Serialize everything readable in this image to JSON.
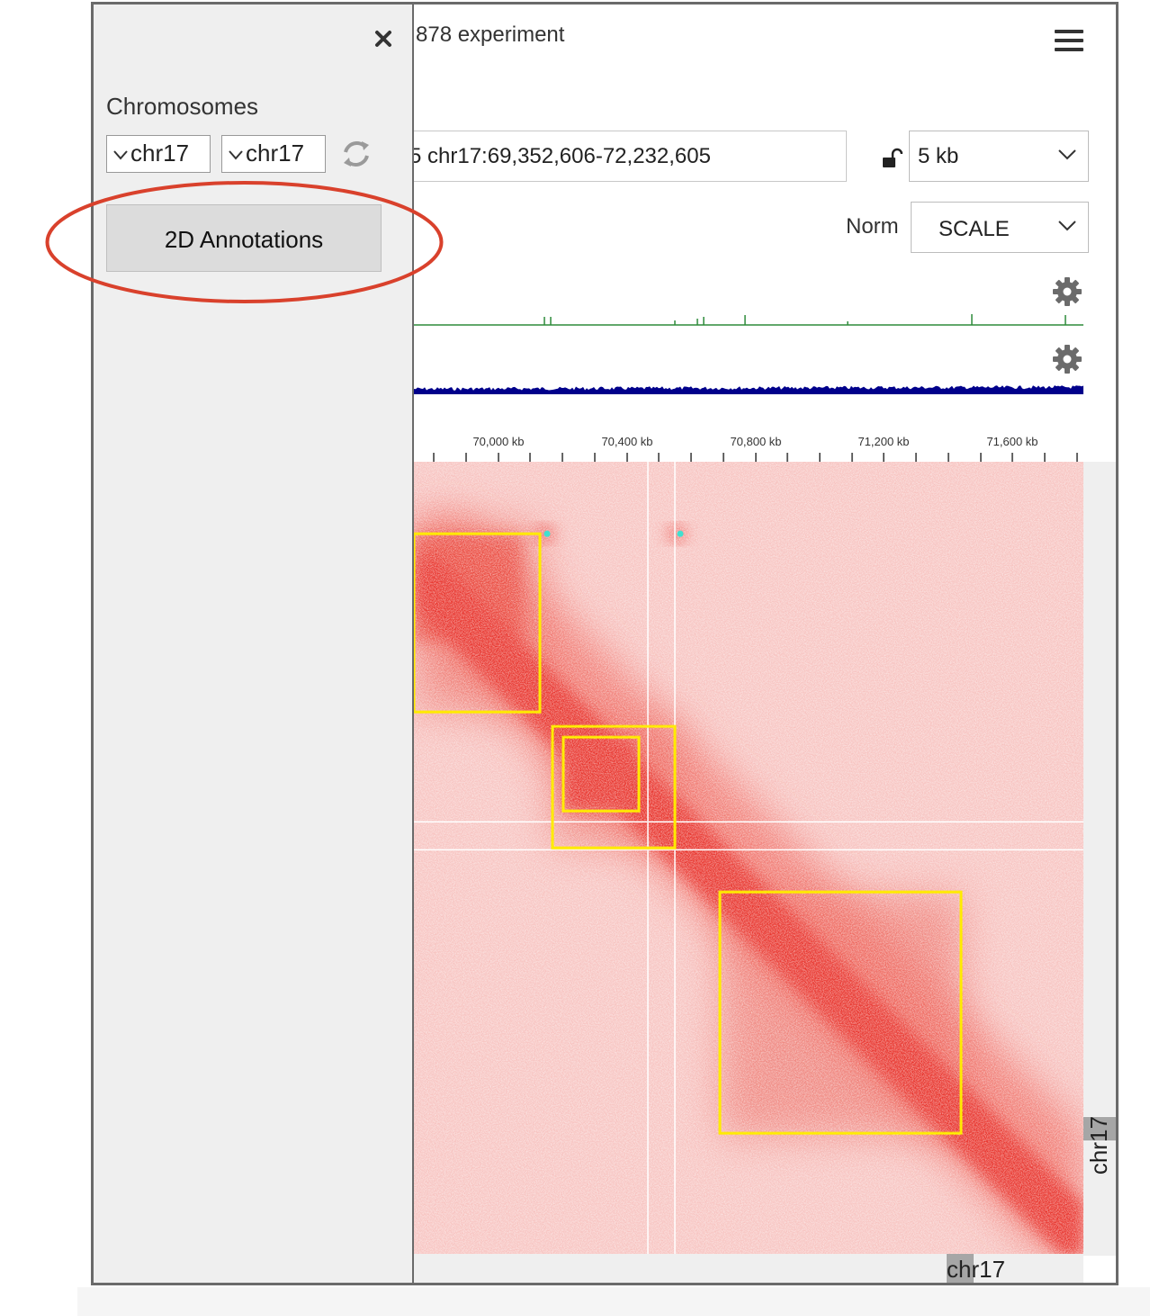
{
  "header": {
    "title": "878 experiment",
    "menu_icon": "hamburger-menu-icon"
  },
  "navigation": {
    "locus": "5 chr17:69,352,606-72,232,605",
    "lock_icon": "unlock-icon",
    "resolution": "5 kb",
    "norm_label": "Norm",
    "norm_value": "SCALE"
  },
  "tracks": {
    "settings_icon": "gear-icon",
    "track_colors": [
      "#2e8b3a",
      "#00008b"
    ]
  },
  "ruler": {
    "ticks": [
      "70,000 kb",
      "70,400 kb",
      "70,800 kb",
      "71,200 kb",
      "71,600 kb"
    ]
  },
  "contact_map": {
    "color": "#e8302a",
    "annotation_color": "#ffeb00",
    "loop_color": "#40e0d0",
    "row_label": "chr17",
    "column_label": "chr17"
  },
  "drawer": {
    "close_icon": "close-icon",
    "chromosomes_label": "Chromosomes",
    "x_chromosome": "chr17",
    "y_chromosome": "chr17",
    "swap_icon": "swap-icon",
    "annotations_button": "2D Annotations",
    "highlight_color": "#d9412c"
  }
}
